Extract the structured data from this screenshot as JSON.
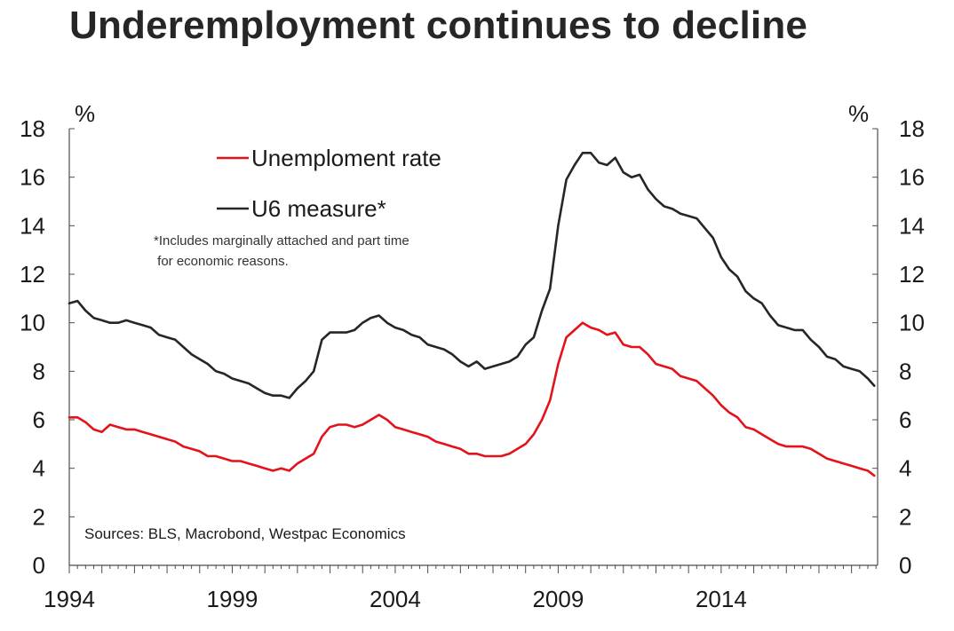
{
  "chart_data": {
    "type": "line",
    "title": "Underemployment continues to decline",
    "ylabel_left": "%",
    "ylabel_right": "%",
    "xlabel": "",
    "ylim": [
      0,
      18
    ],
    "y_ticks": [
      0,
      2,
      4,
      6,
      8,
      10,
      12,
      14,
      16,
      18
    ],
    "xlim": [
      1994,
      2018.8
    ],
    "x_ticks": [
      1994,
      1999,
      2004,
      2009,
      2014
    ],
    "grid": false,
    "legend_position": "top-left",
    "note": [
      "*Includes marginally attached and part time",
      " for economic reasons."
    ],
    "source": "Sources: BLS, Macrobond, Westpac Economics",
    "series": [
      {
        "name": "Unemploment rate",
        "color": "#e3121b",
        "x": [
          1994.0,
          1994.25,
          1994.5,
          1994.75,
          1995.0,
          1995.25,
          1995.5,
          1995.75,
          1996.0,
          1996.25,
          1996.5,
          1996.75,
          1997.0,
          1997.25,
          1997.5,
          1997.75,
          1998.0,
          1998.25,
          1998.5,
          1998.75,
          1999.0,
          1999.25,
          1999.5,
          1999.75,
          2000.0,
          2000.25,
          2000.5,
          2000.75,
          2001.0,
          2001.25,
          2001.5,
          2001.75,
          2002.0,
          2002.25,
          2002.5,
          2002.75,
          2003.0,
          2003.25,
          2003.5,
          2003.75,
          2004.0,
          2004.25,
          2004.5,
          2004.75,
          2005.0,
          2005.25,
          2005.5,
          2005.75,
          2006.0,
          2006.25,
          2006.5,
          2006.75,
          2007.0,
          2007.25,
          2007.5,
          2007.75,
          2008.0,
          2008.25,
          2008.5,
          2008.75,
          2009.0,
          2009.25,
          2009.5,
          2009.75,
          2010.0,
          2010.25,
          2010.5,
          2010.75,
          2011.0,
          2011.25,
          2011.5,
          2011.75,
          2012.0,
          2012.25,
          2012.5,
          2012.75,
          2013.0,
          2013.25,
          2013.5,
          2013.75,
          2014.0,
          2014.25,
          2014.5,
          2014.75,
          2015.0,
          2015.25,
          2015.5,
          2015.75,
          2016.0,
          2016.25,
          2016.5,
          2016.75,
          2017.0,
          2017.25,
          2017.5,
          2017.75,
          2018.0,
          2018.25,
          2018.5,
          2018.7
        ],
        "values": [
          6.1,
          6.1,
          5.9,
          5.6,
          5.5,
          5.8,
          5.7,
          5.6,
          5.6,
          5.5,
          5.4,
          5.3,
          5.2,
          5.1,
          4.9,
          4.8,
          4.7,
          4.5,
          4.5,
          4.4,
          4.3,
          4.3,
          4.2,
          4.1,
          4.0,
          3.9,
          4.0,
          3.9,
          4.2,
          4.4,
          4.6,
          5.3,
          5.7,
          5.8,
          5.8,
          5.7,
          5.8,
          6.0,
          6.2,
          6.0,
          5.7,
          5.6,
          5.5,
          5.4,
          5.3,
          5.1,
          5.0,
          4.9,
          4.8,
          4.6,
          4.6,
          4.5,
          4.5,
          4.5,
          4.6,
          4.8,
          5.0,
          5.4,
          6.0,
          6.8,
          8.3,
          9.4,
          9.7,
          10.0,
          9.8,
          9.7,
          9.5,
          9.6,
          9.1,
          9.0,
          9.0,
          8.7,
          8.3,
          8.2,
          8.1,
          7.8,
          7.7,
          7.6,
          7.3,
          7.0,
          6.6,
          6.3,
          6.1,
          5.7,
          5.6,
          5.4,
          5.2,
          5.0,
          4.9,
          4.9,
          4.9,
          4.8,
          4.6,
          4.4,
          4.3,
          4.2,
          4.1,
          4.0,
          3.9,
          3.7
        ]
      },
      {
        "name": "U6 measure*",
        "color": "#262626",
        "x": [
          1994.0,
          1994.25,
          1994.5,
          1994.75,
          1995.0,
          1995.25,
          1995.5,
          1995.75,
          1996.0,
          1996.25,
          1996.5,
          1996.75,
          1997.0,
          1997.25,
          1997.5,
          1997.75,
          1998.0,
          1998.25,
          1998.5,
          1998.75,
          1999.0,
          1999.25,
          1999.5,
          1999.75,
          2000.0,
          2000.25,
          2000.5,
          2000.75,
          2001.0,
          2001.25,
          2001.5,
          2001.75,
          2002.0,
          2002.25,
          2002.5,
          2002.75,
          2003.0,
          2003.25,
          2003.5,
          2003.75,
          2004.0,
          2004.25,
          2004.5,
          2004.75,
          2005.0,
          2005.25,
          2005.5,
          2005.75,
          2006.0,
          2006.25,
          2006.5,
          2006.75,
          2007.0,
          2007.25,
          2007.5,
          2007.75,
          2008.0,
          2008.25,
          2008.5,
          2008.75,
          2009.0,
          2009.25,
          2009.5,
          2009.75,
          2010.0,
          2010.25,
          2010.5,
          2010.75,
          2011.0,
          2011.25,
          2011.5,
          2011.75,
          2012.0,
          2012.25,
          2012.5,
          2012.75,
          2013.0,
          2013.25,
          2013.5,
          2013.75,
          2014.0,
          2014.25,
          2014.5,
          2014.75,
          2015.0,
          2015.25,
          2015.5,
          2015.75,
          2016.0,
          2016.25,
          2016.5,
          2016.75,
          2017.0,
          2017.25,
          2017.5,
          2017.75,
          2018.0,
          2018.25,
          2018.5,
          2018.7
        ],
        "values": [
          10.8,
          10.9,
          10.5,
          10.2,
          10.1,
          10.0,
          10.0,
          10.1,
          10.0,
          9.9,
          9.8,
          9.5,
          9.4,
          9.3,
          9.0,
          8.7,
          8.5,
          8.3,
          8.0,
          7.9,
          7.7,
          7.6,
          7.5,
          7.3,
          7.1,
          7.0,
          7.0,
          6.9,
          7.3,
          7.6,
          8.0,
          9.3,
          9.6,
          9.6,
          9.6,
          9.7,
          10.0,
          10.2,
          10.3,
          10.0,
          9.8,
          9.7,
          9.5,
          9.4,
          9.1,
          9.0,
          8.9,
          8.7,
          8.4,
          8.2,
          8.4,
          8.1,
          8.2,
          8.3,
          8.4,
          8.6,
          9.1,
          9.4,
          10.5,
          11.4,
          14.0,
          15.9,
          16.5,
          17.0,
          17.0,
          16.6,
          16.5,
          16.8,
          16.2,
          16.0,
          16.1,
          15.5,
          15.1,
          14.8,
          14.7,
          14.5,
          14.4,
          14.3,
          13.9,
          13.5,
          12.7,
          12.2,
          11.9,
          11.3,
          11.0,
          10.8,
          10.3,
          9.9,
          9.8,
          9.7,
          9.7,
          9.3,
          9.0,
          8.6,
          8.5,
          8.2,
          8.1,
          8.0,
          7.7,
          7.4
        ]
      }
    ]
  }
}
